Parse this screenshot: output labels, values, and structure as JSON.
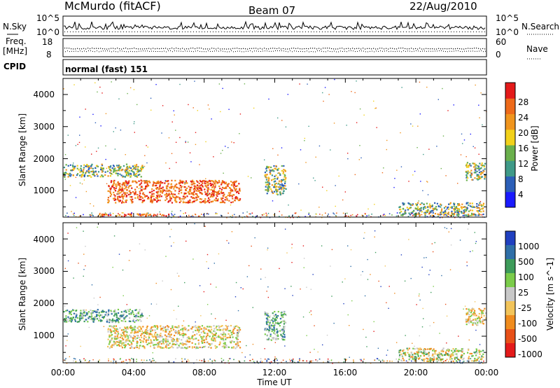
{
  "header": {
    "station": "McMurdo (fitACF)",
    "beam": "Beam 07",
    "date": "22/Aug/2010"
  },
  "sky_panel": {
    "left_label": "N.Sky",
    "left_ticks": [
      "10^5",
      "10^0"
    ],
    "right_label": "N.Search",
    "right_ticks": [
      "10^5",
      "10^0"
    ]
  },
  "freq_panel": {
    "left_label_1": "Freq.",
    "left_label_2": "[MHz]",
    "left_ticks": [
      "18",
      "8"
    ],
    "right_label": "Nave",
    "right_ticks": [
      "60",
      "0"
    ]
  },
  "cpid": {
    "label": "CPID",
    "mode": "normal (fast) 151"
  },
  "colors": {
    "power_scale": [
      "#1a1aff",
      "#2c5fb8",
      "#3f9a88",
      "#6ab04c",
      "#f2d11a",
      "#f0951e",
      "#ee6a1a",
      "#e41a1a"
    ],
    "velocity_scale": [
      "#2040c0",
      "#2f6fa8",
      "#3d9b5a",
      "#7bcc4a",
      "#c8c8c8",
      "#f2c45a",
      "#f08c1e",
      "#e85018",
      "#e41a1a"
    ]
  },
  "chart_data": [
    {
      "type": "heatmap",
      "title": "",
      "quantity": "Power",
      "ylabel": "Slant Range [km]",
      "xlabel": "",
      "ylim": [
        180,
        4500
      ],
      "xlim": [
        "00:00",
        "24:00"
      ],
      "y_ticks": [
        "1000",
        "2000",
        "3000",
        "4000"
      ],
      "colorbar_label": "Power [dB]",
      "colorbar_ticks": [
        "4",
        "8",
        "12",
        "16",
        "20",
        "24",
        "28"
      ],
      "features": [
        {
          "t0": 0.0,
          "t1": 4.5,
          "r0": 1450,
          "r1": 1850,
          "level": "medium"
        },
        {
          "t0": 2.5,
          "t1": 10.0,
          "r0": 650,
          "r1": 1350,
          "level": "high"
        },
        {
          "t0": 11.4,
          "t1": 12.6,
          "r0": 900,
          "r1": 1800,
          "level": "medium"
        },
        {
          "t0": 19.0,
          "t1": 23.8,
          "r0": 250,
          "r1": 650,
          "level": "medium"
        },
        {
          "t0": 22.8,
          "t1": 24.0,
          "r0": 1350,
          "r1": 1900,
          "level": "medium"
        },
        {
          "t0": 2.0,
          "t1": 6.0,
          "r0": 180,
          "r1": 300,
          "level": "high"
        }
      ]
    },
    {
      "type": "heatmap",
      "title": "",
      "quantity": "Velocity",
      "ylabel": "Slant Range [km]",
      "xlabel": "Time UT",
      "ylim": [
        180,
        4500
      ],
      "xlim": [
        "00:00",
        "24:00"
      ],
      "x_ticks": [
        "00:00",
        "04:00",
        "08:00",
        "12:00",
        "16:00",
        "20:00",
        "00:00"
      ],
      "y_ticks": [
        "1000",
        "2000",
        "3000",
        "4000"
      ],
      "colorbar_label": "Velocity [m s^-1]",
      "colorbar_ticks": [
        "1000",
        "500",
        "100",
        "25",
        "-25",
        "-100",
        "-500",
        "-1000"
      ],
      "features": [
        {
          "t0": 0.0,
          "t1": 4.5,
          "r0": 1450,
          "r1": 1850,
          "level": "positive"
        },
        {
          "t0": 2.5,
          "t1": 10.0,
          "r0": 650,
          "r1": 1350,
          "level": "negative"
        },
        {
          "t0": 11.4,
          "t1": 12.6,
          "r0": 900,
          "r1": 1800,
          "level": "positive"
        },
        {
          "t0": 19.0,
          "t1": 23.8,
          "r0": 250,
          "r1": 650,
          "level": "mixed"
        },
        {
          "t0": 22.8,
          "t1": 24.0,
          "r0": 1350,
          "r1": 1900,
          "level": "negative"
        }
      ]
    }
  ]
}
